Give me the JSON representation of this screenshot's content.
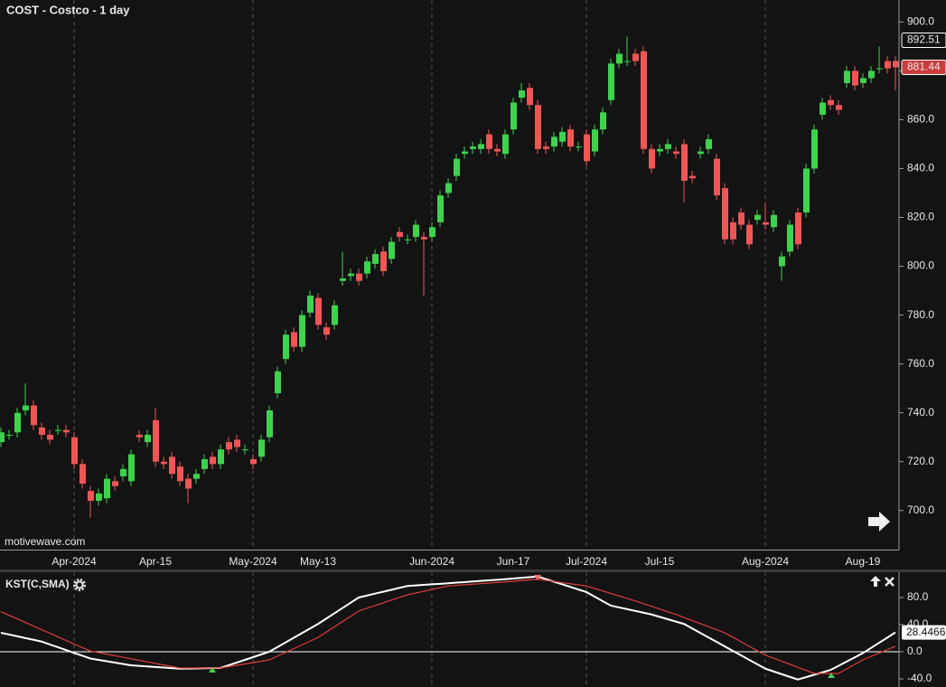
{
  "chart_data": [
    {
      "type": "candlestick",
      "title": "COST - Costco - 1 day",
      "source": "motivewave.com",
      "categories": [
        null,
        null,
        null,
        null,
        null,
        null,
        null,
        null,
        null,
        "Apr-2024",
        null,
        null,
        null,
        null,
        null,
        null,
        null,
        null,
        null,
        "Apr-15",
        null,
        null,
        null,
        null,
        null,
        null,
        null,
        null,
        null,
        null,
        null,
        "May-2024",
        null,
        null,
        null,
        null,
        null,
        null,
        null,
        "May-13",
        null,
        null,
        null,
        null,
        null,
        null,
        null,
        null,
        null,
        null,
        null,
        null,
        null,
        "Jun-2024",
        null,
        null,
        null,
        null,
        null,
        null,
        null,
        null,
        null,
        "Jun-17",
        null,
        null,
        null,
        null,
        null,
        null,
        null,
        null,
        "Jul-2024",
        null,
        null,
        null,
        null,
        null,
        null,
        null,
        null,
        "Jul-15",
        null,
        null,
        null,
        null,
        null,
        null,
        null,
        null,
        null,
        null,
        null,
        null,
        "Aug-2024",
        null,
        null,
        null,
        null,
        null,
        null,
        null,
        null,
        null,
        null,
        null,
        "Aug-19",
        null,
        null,
        null,
        null
      ],
      "open": [
        728,
        731,
        732,
        741,
        743,
        734,
        731,
        733,
        733,
        730,
        719,
        708,
        704,
        705,
        712,
        714,
        712,
        731,
        728,
        737,
        720,
        722,
        718,
        713,
        713,
        717,
        722,
        719,
        728,
        729,
        725,
        721,
        722,
        730,
        748,
        762,
        773,
        767,
        781,
        787,
        775,
        776,
        794,
        796,
        797,
        797,
        801,
        806,
        803,
        814,
        811,
        812,
        812,
        812,
        818,
        830,
        837,
        846,
        848,
        848,
        854,
        848,
        846,
        856,
        869,
        873,
        866,
        849,
        849,
        851,
        856,
        849,
        854,
        847,
        856,
        868,
        883,
        884,
        887,
        888,
        848,
        847,
        848,
        847,
        850,
        837,
        846,
        848,
        844,
        832,
        818,
        822,
        817,
        819,
        818,
        816,
        800,
        806,
        822,
        822,
        840,
        862,
        868,
        866,
        875,
        880,
        875,
        877,
        881,
        884,
        884
      ],
      "high": [
        734,
        733,
        742,
        752,
        745,
        736,
        733,
        735,
        735,
        732,
        721,
        710,
        709,
        715,
        714,
        719,
        725,
        733,
        733,
        742,
        722,
        724,
        720,
        715,
        717,
        723,
        724,
        727,
        730,
        731,
        727,
        723,
        731,
        743,
        759,
        774,
        775,
        782,
        790,
        789,
        777,
        786,
        806,
        799,
        799,
        804,
        807,
        808,
        812,
        816,
        813,
        819,
        814,
        818,
        831,
        836,
        846,
        849,
        851,
        852,
        856,
        850,
        856,
        869,
        875,
        875,
        868,
        851,
        855,
        857,
        858,
        851,
        856,
        858,
        865,
        885,
        889,
        894,
        889,
        890,
        850,
        850,
        852,
        849,
        852,
        839,
        849,
        854,
        846,
        834,
        820,
        824,
        819,
        823,
        826,
        823,
        806,
        819,
        824,
        842,
        858,
        869,
        870,
        868,
        882,
        882,
        879,
        882,
        890,
        886,
        886
      ],
      "low": [
        726,
        729,
        730,
        739,
        733,
        729,
        727,
        731,
        730,
        717,
        709,
        697,
        702,
        703,
        708,
        712,
        710,
        728,
        726,
        718,
        717,
        713,
        710,
        703,
        711,
        715,
        717,
        717,
        723,
        724,
        723,
        717,
        720,
        728,
        746,
        760,
        765,
        765,
        779,
        774,
        770,
        774,
        792,
        794,
        792,
        795,
        799,
        796,
        801,
        810,
        809,
        810,
        788,
        810,
        816,
        828,
        835,
        844,
        846,
        846,
        846,
        845,
        844,
        854,
        867,
        864,
        846,
        846,
        847,
        849,
        847,
        847,
        841,
        845,
        854,
        866,
        881,
        882,
        882,
        846,
        838,
        845,
        846,
        844,
        826,
        834,
        844,
        846,
        827,
        809,
        809,
        815,
        807,
        817,
        815,
        814,
        794,
        804,
        807,
        820,
        838,
        860,
        864,
        862,
        873,
        872,
        873,
        875,
        879,
        879,
        872
      ],
      "close": [
        732,
        731,
        740,
        743,
        735,
        731,
        729,
        733,
        732,
        719,
        711,
        704,
        707,
        713,
        710,
        717,
        723,
        730,
        731,
        720,
        719,
        715,
        712,
        709,
        715,
        721,
        719,
        725,
        725,
        726,
        725,
        719,
        729,
        741,
        757,
        772,
        767,
        780,
        788,
        776,
        772,
        784,
        795,
        797,
        794,
        802,
        805,
        798,
        810,
        812,
        811,
        817,
        811,
        816,
        829,
        834,
        844,
        847,
        849,
        850,
        848,
        847,
        854,
        867,
        872,
        866,
        848,
        848,
        853,
        855,
        849,
        849,
        843,
        856,
        863,
        883,
        887,
        884,
        884,
        848,
        840,
        848,
        850,
        846,
        835,
        836,
        847,
        852,
        829,
        811,
        811,
        817,
        809,
        821,
        817,
        821,
        804,
        817,
        809,
        840,
        856,
        867,
        866,
        864,
        880,
        874,
        877,
        880,
        881,
        881,
        881.44
      ],
      "up_color": "#3fd24f",
      "down_color": "#f05656",
      "ylim": [
        684,
        909
      ],
      "yticks": [
        {
          "value": 700,
          "label": "700.0"
        },
        {
          "value": 720,
          "label": "720.0"
        },
        {
          "value": 740,
          "label": "740.0"
        },
        {
          "value": 760,
          "label": "760.0"
        },
        {
          "value": 780,
          "label": "780.0"
        },
        {
          "value": 800,
          "label": "800.0"
        },
        {
          "value": 820,
          "label": "820.0"
        },
        {
          "value": 840,
          "label": "840.0"
        },
        {
          "value": 860,
          "label": "860.0"
        },
        {
          "value": 880,
          "label": "880.0"
        },
        {
          "value": 900,
          "label": "900.0"
        }
      ],
      "price_labels": [
        {
          "value": 892.51,
          "label": "892.51",
          "color": "#131313"
        },
        {
          "value": 881.44,
          "label": "881.44",
          "color": "#c83c3c"
        }
      ]
    },
    {
      "type": "line",
      "title": "KST(C,SMA)",
      "series": [
        {
          "color": "#ffffff",
          "values": [
            28,
            25.4,
            22.8,
            20.2,
            17.6,
            15,
            10.8,
            6.7,
            2.5,
            -1.7,
            -5.8,
            -10,
            -12,
            -14,
            -16,
            -18,
            -20,
            -20.8,
            -21.7,
            -22.5,
            -23.3,
            -24.2,
            -25,
            -24.8,
            -24.6,
            -24.4,
            -24.2,
            -24,
            -20,
            -16,
            -12,
            -8,
            -4,
            0,
            6.8,
            13.7,
            20.5,
            27.3,
            34.2,
            41,
            48.8,
            56.6,
            64.4,
            72.2,
            80,
            82.8,
            85.7,
            88.5,
            91.3,
            94.2,
            97,
            97.8,
            98.6,
            99.4,
            100.2,
            101,
            101.9,
            102.7,
            103.6,
            104.4,
            105.3,
            106.1,
            107,
            108,
            109,
            110,
            111,
            107.2,
            103.3,
            99.5,
            95.7,
            91.8,
            88,
            81.3,
            74.7,
            68,
            65.4,
            62.8,
            60.2,
            57.6,
            55,
            51.5,
            48,
            44.5,
            41,
            34.4,
            27.8,
            21.2,
            14.6,
            8,
            1.4,
            -5.2,
            -11.8,
            -18.4,
            -25,
            -29,
            -33,
            -37,
            -41,
            -37.5,
            -34,
            -30.5,
            -27,
            -20.8,
            -14.5,
            -8.3,
            -2,
            5.6,
            13.2,
            20.8,
            28.4466
          ]
        },
        {
          "color": "#e03c3c",
          "values": [
            59,
            53.7,
            48.5,
            43.2,
            37.9,
            32.6,
            27.4,
            22.1,
            16.8,
            11.5,
            6.3,
            1,
            -1.3,
            -3.5,
            -5.8,
            -8.1,
            -10.4,
            -12.6,
            -14.9,
            -17.2,
            -19.5,
            -21.7,
            -24,
            -24,
            -24,
            -24,
            -24,
            -24,
            -22,
            -20,
            -18,
            -16,
            -14,
            -12,
            -6.5,
            -1,
            4.5,
            10,
            15.5,
            21,
            28.8,
            36.6,
            44.4,
            52.2,
            60,
            64,
            68,
            72,
            76,
            80,
            84,
            86.6,
            89.2,
            91.8,
            94.4,
            97,
            97.9,
            98.7,
            99.6,
            100.4,
            101.3,
            102.1,
            103,
            104,
            105,
            106,
            107,
            105.3,
            103.7,
            102,
            100.3,
            98.7,
            97,
            93.3,
            89.7,
            86,
            82.3,
            78.7,
            75,
            71,
            67,
            63,
            59,
            55,
            50.5,
            46,
            41.5,
            37,
            32.5,
            28,
            21.4,
            14.8,
            8.2,
            1.6,
            -5,
            -9.5,
            -14,
            -18.5,
            -23,
            -27.5,
            -32,
            -32,
            -32,
            -32,
            -25.3,
            -18.7,
            -12,
            -7,
            -2,
            3,
            8
          ]
        }
      ],
      "ylim": [
        -52,
        117.3
      ],
      "yticks": [
        {
          "value": 80,
          "label": "80.0"
        },
        {
          "value": 40,
          "label": "40.0"
        },
        {
          "value": 0,
          "label": "0.0"
        },
        {
          "value": -40,
          "label": "-40.0"
        }
      ],
      "value_label": {
        "value": 28.4466,
        "label": "28.4466"
      }
    }
  ]
}
